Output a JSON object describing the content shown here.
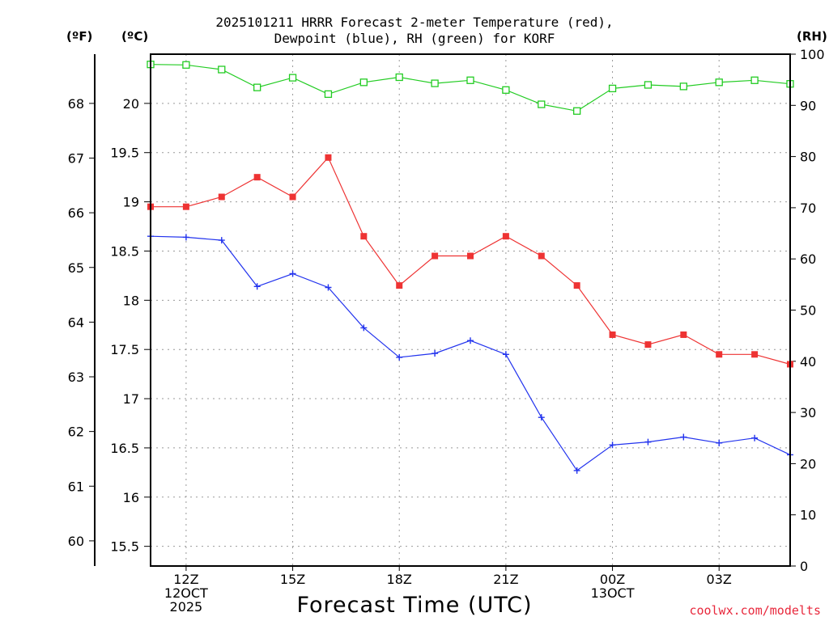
{
  "chart_data": {
    "type": "line",
    "title_line1": "2025101211 HRRR Forecast 2-meter Temperature (red),",
    "title_line2": "Dewpoint (blue), RH (green) for KORF",
    "xlabel": "Forecast Time (UTC)",
    "unit_f": "(ºF)",
    "unit_c": "(ºC)",
    "unit_rh": "(RH)",
    "credit": "coolwx.com/modelts",
    "x_hours": [
      11,
      12,
      13,
      14,
      15,
      16,
      17,
      18,
      19,
      20,
      21,
      22,
      23,
      24,
      25,
      26,
      27,
      28,
      29
    ],
    "x_ticks": [
      {
        "hour": 12,
        "lines": [
          "12Z",
          "12OCT",
          "2025"
        ]
      },
      {
        "hour": 15,
        "lines": [
          "15Z"
        ]
      },
      {
        "hour": 18,
        "lines": [
          "18Z"
        ]
      },
      {
        "hour": 21,
        "lines": [
          "21Z"
        ]
      },
      {
        "hour": 24,
        "lines": [
          "00Z",
          "13OCT"
        ]
      },
      {
        "hour": 27,
        "lines": [
          "03Z"
        ]
      }
    ],
    "xlim": [
      11,
      29
    ],
    "ylim_c": [
      15.3,
      20.5
    ],
    "ylim_rh": [
      0,
      100
    ],
    "celsius_ticks": [
      "15.5",
      "16",
      "16.5",
      "17",
      "17.5",
      "18",
      "18.5",
      "19",
      "19.5",
      "20"
    ],
    "fahrenheit_ticks": [
      "60",
      "61",
      "62",
      "63",
      "64",
      "65",
      "66",
      "67",
      "68"
    ],
    "rh_ticks": [
      "0",
      "10",
      "20",
      "30",
      "40",
      "50",
      "60",
      "70",
      "80",
      "90",
      "100"
    ],
    "series": [
      {
        "name": "Temperature",
        "color": "#ee3333",
        "marker": "filled-square",
        "axis": "celsius",
        "values": [
          18.95,
          18.95,
          19.05,
          19.25,
          19.05,
          19.45,
          18.65,
          18.15,
          18.45,
          18.45,
          18.65,
          18.45,
          18.15,
          17.65,
          17.55,
          17.65,
          17.45,
          17.45,
          17.35
        ]
      },
      {
        "name": "Dewpoint",
        "color": "#2233ee",
        "marker": "plus",
        "axis": "celsius",
        "values": [
          18.65,
          18.64,
          18.61,
          18.14,
          18.27,
          18.13,
          17.72,
          17.42,
          17.46,
          17.59,
          17.45,
          16.81,
          16.27,
          16.53,
          16.56,
          16.61,
          16.55,
          16.6,
          16.43
        ]
      },
      {
        "name": "RH",
        "color": "#22cc22",
        "marker": "open-square",
        "axis": "rh",
        "values": [
          98.0,
          97.9,
          97.0,
          93.5,
          95.4,
          92.2,
          94.5,
          95.5,
          94.3,
          94.9,
          93.0,
          90.2,
          88.9,
          93.3,
          94.0,
          93.7,
          94.5,
          94.9,
          94.2
        ]
      }
    ]
  }
}
